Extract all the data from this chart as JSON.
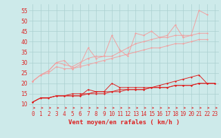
{
  "x": [
    0,
    1,
    2,
    3,
    4,
    5,
    6,
    7,
    8,
    9,
    10,
    11,
    12,
    13,
    14,
    15,
    16,
    17,
    18,
    19,
    20,
    21,
    22,
    23
  ],
  "line1": [
    21,
    24,
    26,
    30,
    31,
    27,
    29,
    37,
    32,
    33,
    43,
    36,
    33,
    44,
    43,
    45,
    42,
    43,
    48,
    42,
    43,
    55,
    53,
    null
  ],
  "line2": [
    21,
    24,
    26,
    30,
    29,
    28,
    30,
    32,
    33,
    33,
    33,
    35,
    37,
    39,
    40,
    41,
    42,
    42,
    43,
    43,
    43,
    44,
    44,
    null
  ],
  "line3": [
    21,
    24,
    25,
    28,
    27,
    27,
    28,
    29,
    30,
    31,
    32,
    33,
    34,
    35,
    36,
    37,
    37,
    38,
    39,
    39,
    40,
    41,
    41,
    null
  ],
  "line4": [
    11,
    13,
    13,
    14,
    14,
    14,
    14,
    17,
    16,
    16,
    20,
    18,
    18,
    18,
    18,
    18,
    19,
    20,
    21,
    22,
    23,
    24,
    20,
    20
  ],
  "line5": [
    11,
    13,
    13,
    14,
    14,
    15,
    15,
    15,
    16,
    16,
    16,
    17,
    17,
    17,
    17,
    18,
    18,
    18,
    19,
    19,
    19,
    20,
    20,
    20
  ],
  "line6": [
    11,
    13,
    13,
    14,
    14,
    14,
    14,
    15,
    15,
    15,
    16,
    16,
    17,
    17,
    17,
    18,
    18,
    18,
    19,
    19,
    19,
    20,
    20,
    20
  ],
  "bg_color": "#cdeaea",
  "grid_color": "#aacfcf",
  "line_color_light": "#f0a0a0",
  "line_color_dark": "#dd2222",
  "xlabel": "Vent moyen/en rafales ( km/h )",
  "ylabel_ticks": [
    10,
    15,
    20,
    25,
    30,
    35,
    40,
    45,
    50,
    55
  ],
  "xlim": [
    -0.5,
    23.5
  ],
  "ylim": [
    7,
    58
  ],
  "xlabel_fontsize": 6.5,
  "tick_fontsize": 5.5
}
